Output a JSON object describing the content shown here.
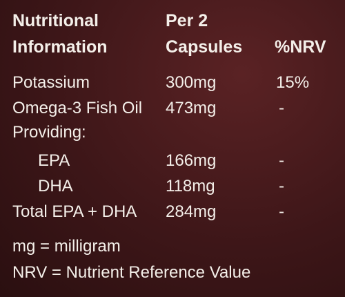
{
  "header": {
    "nutrient": [
      "Nutritional",
      "Information"
    ],
    "amount": [
      "Per 2",
      "Capsules"
    ],
    "nrv": "%NRV"
  },
  "rows": [
    {
      "name": "Potassium",
      "amount": "300mg",
      "nrv": "15%"
    },
    {
      "name": "Omega-3 Fish Oil",
      "amount": "473mg",
      "nrv": "-"
    },
    {
      "name": "Providing:",
      "items": [
        {
          "name": "EPA",
          "amount": "166mg",
          "nrv": "-"
        },
        {
          "name": "DHA",
          "amount": "118mg",
          "nrv": "-"
        }
      ]
    },
    {
      "name": "Total EPA + DHA",
      "amount": "284mg",
      "nrv": "-"
    }
  ],
  "footnotes": [
    "mg = milligram",
    "NRV = Nutrient Reference Value"
  ]
}
